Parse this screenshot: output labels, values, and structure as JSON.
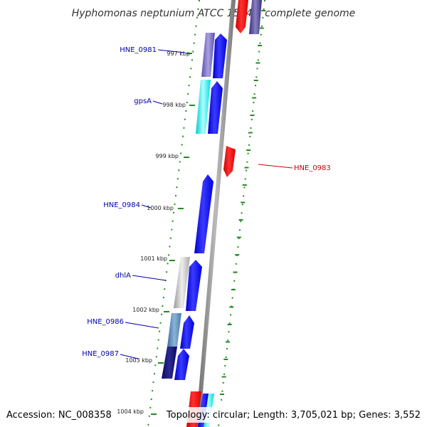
{
  "title": "Hyphomonas neptunium ATCC 15444, complete genome",
  "footer": {
    "accession": "Accession: NC_008358",
    "summary": "Topology: circular; Length: 3,705,021 bp; Genes: 3,552"
  },
  "colors": {
    "backbone": "#888888",
    "tick": "#228b22",
    "label_forward": "#0000aa",
    "label_reverse": "#cc0000"
  },
  "ticks": [
    {
      "label": "997 kbp"
    },
    {
      "label": "998 kbp"
    },
    {
      "label": "999 kbp"
    },
    {
      "label": "1000 kbp"
    },
    {
      "label": "1001 kbp"
    },
    {
      "label": "1002 kbp"
    },
    {
      "label": "1003 kbp"
    },
    {
      "label": "1004 kbp"
    }
  ],
  "gene_labels": [
    {
      "text": "HNE_0981",
      "strand": "forward"
    },
    {
      "text": "gpsA",
      "strand": "forward"
    },
    {
      "text": "HNE_0983",
      "strand": "reverse"
    },
    {
      "text": "HNE_0984",
      "strand": "forward"
    },
    {
      "text": "dhlA",
      "strand": "forward"
    },
    {
      "text": "HNE_0986",
      "strand": "forward"
    },
    {
      "text": "HNE_0987",
      "strand": "forward"
    }
  ]
}
